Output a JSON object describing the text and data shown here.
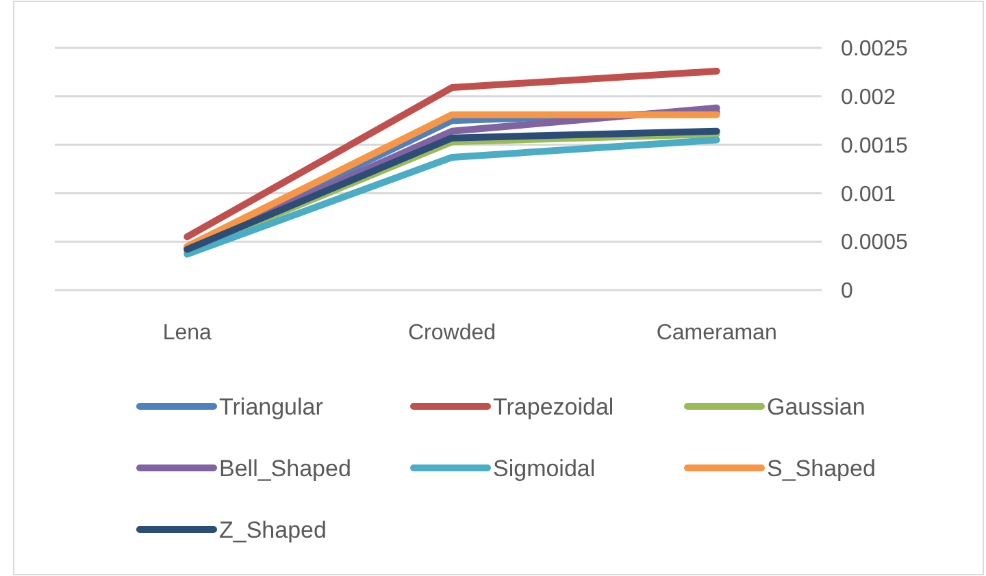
{
  "chart_data": {
    "type": "line",
    "categories": [
      "Lena",
      "Crowded",
      "Cameraman"
    ],
    "series": [
      {
        "name": "Triangular",
        "color": "#4f81bd",
        "values": [
          0.00044,
          0.00175,
          0.00184
        ]
      },
      {
        "name": "Trapezoidal",
        "color": "#c0504d",
        "values": [
          0.00055,
          0.00209,
          0.00226
        ]
      },
      {
        "name": "Gaussian",
        "color": "#9bbb59",
        "values": [
          0.0004,
          0.00153,
          0.00161
        ]
      },
      {
        "name": "Bell_Shaped",
        "color": "#8064a2",
        "values": [
          0.00043,
          0.00164,
          0.00188
        ]
      },
      {
        "name": "Sigmoidal",
        "color": "#4bacc6",
        "values": [
          0.00037,
          0.00137,
          0.00155
        ]
      },
      {
        "name": "S_Shaped",
        "color": "#f79646",
        "values": [
          0.00045,
          0.00181,
          0.00181
        ]
      },
      {
        "name": "Z_Shaped",
        "color": "#2c4d75",
        "values": [
          0.00042,
          0.00157,
          0.00164
        ]
      }
    ],
    "ylim": [
      0,
      0.0025
    ],
    "yticks": [
      0,
      0.0005,
      0.001,
      0.0015,
      0.002,
      0.0025
    ],
    "grid": "y",
    "legend": "bottom",
    "marker": "none",
    "line_style": "solid"
  }
}
